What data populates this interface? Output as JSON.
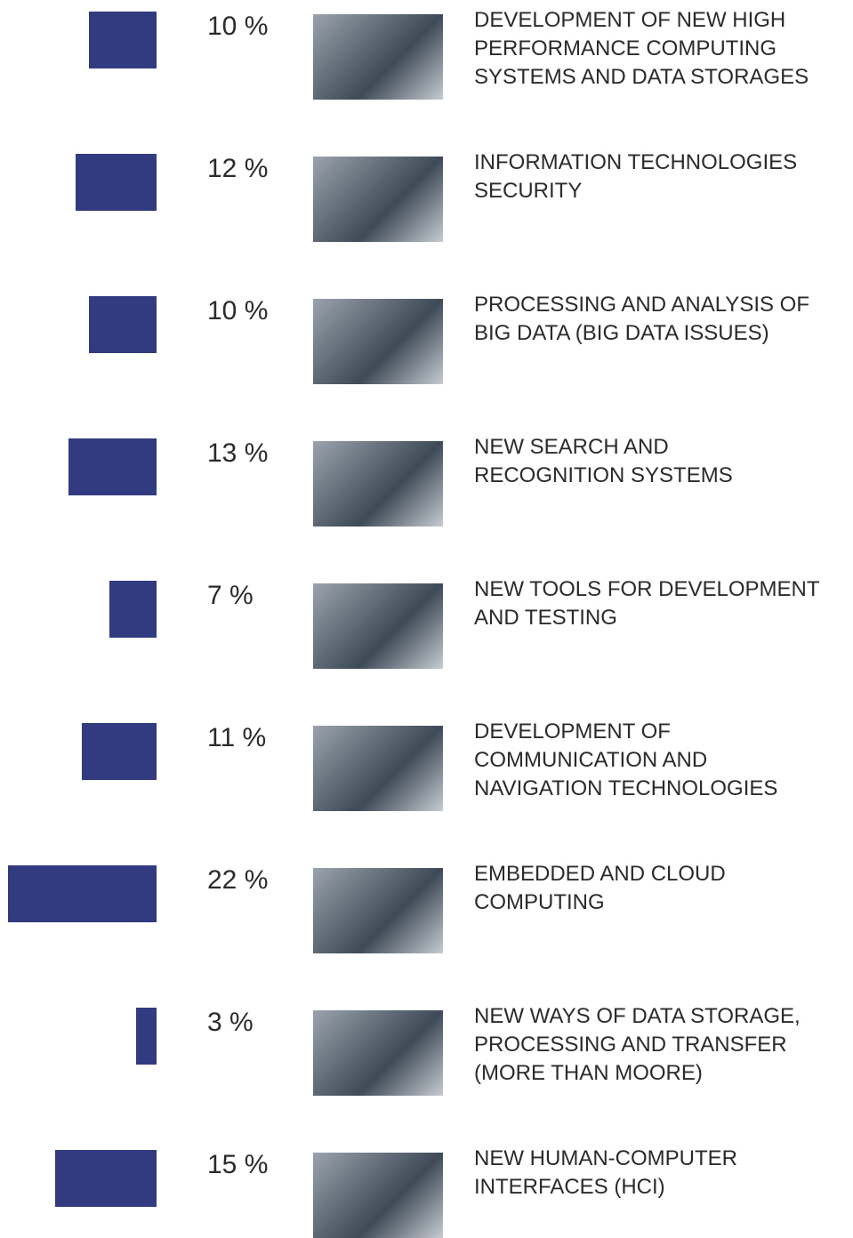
{
  "chart_data": {
    "type": "bar",
    "categories": [
      "DEVELOPMENT OF NEW HIGH\nPERFORMANCE COMPUTING\nSYSTEMS AND DATA STORAGES",
      "INFORMATION TECHNOLOGIES\nSECURITY",
      "PROCESSING AND ANALYSIS OF\nBIG DATA (BIG DATA ISSUES)",
      "NEW SEARCH AND\nRECOGNITION SYSTEMS",
      "NEW TOOLS FOR DEVELOPMENT\nAND TESTING",
      "DEVELOPMENT OF\nCOMMUNICATION AND\nNAVIGATION TECHNOLOGIES",
      "EMBEDDED AND CLOUD\nCOMPUTING",
      "NEW WAYS OF DATA STORAGE,\nPROCESSING AND TRANSFER\n(MORE THAN MOORE)",
      "NEW HUMAN-COMPUTER\nINTERFACES (HCI)"
    ],
    "values": [
      10,
      12,
      10,
      13,
      7,
      11,
      22,
      3,
      15
    ],
    "value_labels": [
      "10 %",
      "12 %",
      "10 %",
      "13 %",
      "7 %",
      "11 %",
      "22 %",
      "3 %",
      "15 %"
    ],
    "color": "#323b80"
  }
}
